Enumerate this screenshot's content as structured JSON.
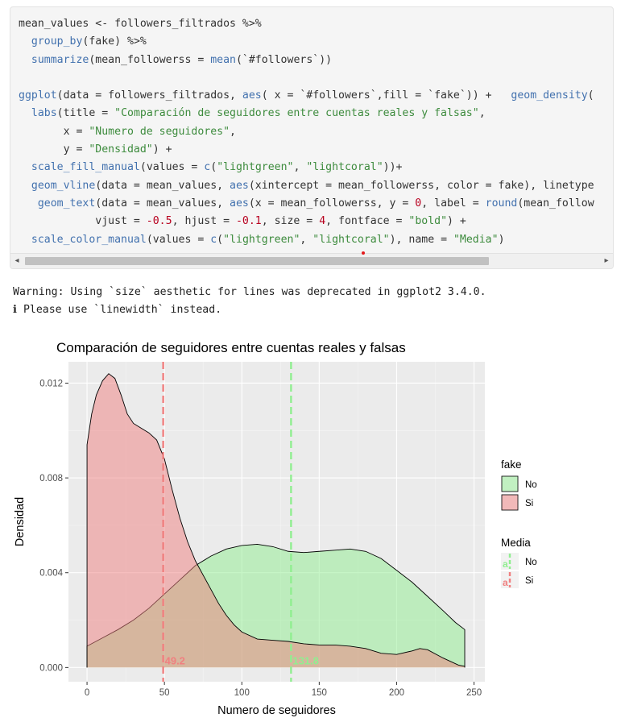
{
  "code": {
    "lines": [
      [
        {
          "t": "mean_values <- followers_filtrados %>%",
          "c": "#333333"
        }
      ],
      [
        {
          "t": "  ",
          "c": "#333333"
        },
        {
          "t": "group_by",
          "c": "#4271ae"
        },
        {
          "t": "(fake) %>%",
          "c": "#333333"
        }
      ],
      [
        {
          "t": "  ",
          "c": "#333333"
        },
        {
          "t": "summarize",
          "c": "#4271ae"
        },
        {
          "t": "(mean_followerss = ",
          "c": "#333333"
        },
        {
          "t": "mean",
          "c": "#4271ae"
        },
        {
          "t": "(`#followers`))",
          "c": "#333333"
        }
      ],
      [
        {
          "t": "",
          "c": "#333333"
        }
      ],
      [
        {
          "t": "ggplot",
          "c": "#4271ae"
        },
        {
          "t": "(data = followers_filtrados, ",
          "c": "#333333"
        },
        {
          "t": "aes",
          "c": "#4271ae"
        },
        {
          "t": "( x = `#followers`,fill = `fake`)) +   ",
          "c": "#333333"
        },
        {
          "t": "geom_density",
          "c": "#4271ae"
        },
        {
          "t": "(",
          "c": "#333333"
        }
      ],
      [
        {
          "t": "  ",
          "c": "#333333"
        },
        {
          "t": "labs",
          "c": "#4271ae"
        },
        {
          "t": "(title = ",
          "c": "#333333"
        },
        {
          "t": "\"Comparación de seguidores entre cuentas reales y falsas\"",
          "c": "#3d8b3d"
        },
        {
          "t": ",",
          "c": "#333333"
        }
      ],
      [
        {
          "t": "       x = ",
          "c": "#333333"
        },
        {
          "t": "\"Numero de seguidores\"",
          "c": "#3d8b3d"
        },
        {
          "t": ",",
          "c": "#333333"
        }
      ],
      [
        {
          "t": "       y = ",
          "c": "#333333"
        },
        {
          "t": "\"Densidad\"",
          "c": "#3d8b3d"
        },
        {
          "t": ") +",
          "c": "#333333"
        }
      ],
      [
        {
          "t": "  ",
          "c": "#333333"
        },
        {
          "t": "scale_fill_manual",
          "c": "#4271ae"
        },
        {
          "t": "(values = ",
          "c": "#333333"
        },
        {
          "t": "c",
          "c": "#4271ae"
        },
        {
          "t": "(",
          "c": "#333333"
        },
        {
          "t": "\"lightgreen\"",
          "c": "#3d8b3d"
        },
        {
          "t": ", ",
          "c": "#333333"
        },
        {
          "t": "\"lightcoral\"",
          "c": "#3d8b3d"
        },
        {
          "t": "))+",
          "c": "#333333"
        }
      ],
      [
        {
          "t": "  ",
          "c": "#333333"
        },
        {
          "t": "geom_vline",
          "c": "#4271ae"
        },
        {
          "t": "(data = mean_values, ",
          "c": "#333333"
        },
        {
          "t": "aes",
          "c": "#4271ae"
        },
        {
          "t": "(xintercept = mean_followerss, color = fake), linetype",
          "c": "#333333"
        }
      ],
      [
        {
          "t": "   ",
          "c": "#333333"
        },
        {
          "t": "geom_text",
          "c": "#4271ae"
        },
        {
          "t": "(data = mean_values, ",
          "c": "#333333"
        },
        {
          "t": "aes",
          "c": "#4271ae"
        },
        {
          "t": "(x = mean_followerss, y = ",
          "c": "#333333"
        },
        {
          "t": "0",
          "c": "#b8001f"
        },
        {
          "t": ", label = ",
          "c": "#333333"
        },
        {
          "t": "round",
          "c": "#4271ae"
        },
        {
          "t": "(mean_follow",
          "c": "#333333"
        }
      ],
      [
        {
          "t": "            vjust = ",
          "c": "#333333"
        },
        {
          "t": "-0.5",
          "c": "#b8001f"
        },
        {
          "t": ", hjust = ",
          "c": "#333333"
        },
        {
          "t": "-0.1",
          "c": "#b8001f"
        },
        {
          "t": ", size = ",
          "c": "#333333"
        },
        {
          "t": "4",
          "c": "#b8001f"
        },
        {
          "t": ", fontface = ",
          "c": "#333333"
        },
        {
          "t": "\"bold\"",
          "c": "#3d8b3d"
        },
        {
          "t": ") +",
          "c": "#333333"
        }
      ],
      [
        {
          "t": "  ",
          "c": "#333333"
        },
        {
          "t": "scale_color_manual",
          "c": "#4271ae"
        },
        {
          "t": "(values = ",
          "c": "#333333"
        },
        {
          "t": "c",
          "c": "#4271ae"
        },
        {
          "t": "(",
          "c": "#333333"
        },
        {
          "t": "\"lightgreen\"",
          "c": "#3d8b3d"
        },
        {
          "t": ", ",
          "c": "#333333"
        },
        {
          "t": "\"lightcoral\"",
          "c": "#3d8b3d"
        },
        {
          "t": "), name = ",
          "c": "#333333"
        },
        {
          "t": "\"Media\"",
          "c": "#3d8b3d"
        },
        {
          "t": ")",
          "c": "#333333"
        }
      ]
    ],
    "scroll_left_arrow": "◂",
    "scroll_right_arrow": "▸"
  },
  "warning": {
    "line1": "Warning: Using `size` aesthetic for lines was deprecated in ggplot2 3.4.0.",
    "line2": "ℹ Please use `linewidth` instead."
  },
  "colors": {
    "no_fill": "#90ee90",
    "si_fill": "#f08080",
    "panel_bg": "#ebebeb",
    "grid_major": "#ffffff"
  },
  "chart_data": {
    "type": "area",
    "title": "Comparación de seguidores entre cuentas reales y falsas",
    "xlabel": "Numero de seguidores",
    "ylabel": "Densidad",
    "xlim": [
      -12,
      257
    ],
    "ylim": [
      -0.0006,
      0.0129
    ],
    "x_ticks": [
      0,
      50,
      100,
      150,
      200,
      250
    ],
    "y_ticks": [
      0.0,
      0.004,
      0.008,
      0.012
    ],
    "y_tick_labels": [
      "0.000",
      "0.004",
      "0.008",
      "0.012"
    ],
    "grid": true,
    "series": [
      {
        "name": "No",
        "fill": "#90ee90",
        "points": [
          [
            0,
            0.0009
          ],
          [
            10,
            0.00125
          ],
          [
            20,
            0.0016
          ],
          [
            30,
            0.002
          ],
          [
            40,
            0.0025
          ],
          [
            50,
            0.0031
          ],
          [
            60,
            0.0037
          ],
          [
            70,
            0.0043
          ],
          [
            80,
            0.0047
          ],
          [
            90,
            0.005
          ],
          [
            100,
            0.00515
          ],
          [
            110,
            0.0052
          ],
          [
            120,
            0.0051
          ],
          [
            130,
            0.0049
          ],
          [
            140,
            0.00485
          ],
          [
            150,
            0.0049
          ],
          [
            160,
            0.00495
          ],
          [
            170,
            0.005
          ],
          [
            180,
            0.0049
          ],
          [
            190,
            0.0046
          ],
          [
            200,
            0.0041
          ],
          [
            210,
            0.0036
          ],
          [
            220,
            0.003
          ],
          [
            230,
            0.0024
          ],
          [
            238,
            0.0019
          ],
          [
            244,
            0.0016
          ]
        ]
      },
      {
        "name": "Si",
        "fill": "#f08080",
        "points": [
          [
            0,
            0.0094
          ],
          [
            3,
            0.0107
          ],
          [
            6,
            0.0115
          ],
          [
            10,
            0.0121
          ],
          [
            14,
            0.0124
          ],
          [
            18,
            0.0122
          ],
          [
            22,
            0.0115
          ],
          [
            26,
            0.0107
          ],
          [
            30,
            0.0103
          ],
          [
            35,
            0.0101
          ],
          [
            40,
            0.0099
          ],
          [
            45,
            0.0096
          ],
          [
            50,
            0.0088
          ],
          [
            55,
            0.0075
          ],
          [
            60,
            0.0063
          ],
          [
            65,
            0.0053
          ],
          [
            70,
            0.0045
          ],
          [
            75,
            0.0039
          ],
          [
            80,
            0.0033
          ],
          [
            85,
            0.0027
          ],
          [
            90,
            0.0022
          ],
          [
            95,
            0.0018
          ],
          [
            100,
            0.0015
          ],
          [
            110,
            0.0012
          ],
          [
            120,
            0.00115
          ],
          [
            130,
            0.0011
          ],
          [
            140,
            0.001
          ],
          [
            150,
            0.00095
          ],
          [
            160,
            0.00095
          ],
          [
            170,
            0.0009
          ],
          [
            180,
            0.0008
          ],
          [
            190,
            0.0006
          ],
          [
            200,
            0.00055
          ],
          [
            210,
            0.0007
          ],
          [
            215,
            0.0008
          ],
          [
            220,
            0.00075
          ],
          [
            230,
            0.0004
          ],
          [
            240,
            0.0001
          ],
          [
            244,
            5e-05
          ]
        ]
      }
    ],
    "vlines": [
      {
        "group": "Si",
        "x": 49.2,
        "label": "49.2",
        "color": "#f08080"
      },
      {
        "group": "No",
        "x": 131.8,
        "label": "131.8",
        "color": "#90ee90"
      }
    ],
    "legend_placement": "right",
    "legend_fill": {
      "title": "fake",
      "items": [
        {
          "label": "No",
          "color": "#90ee90"
        },
        {
          "label": "Si",
          "color": "#f08080"
        }
      ]
    },
    "legend_color": {
      "title": "Media",
      "items": [
        {
          "label": "No",
          "color": "#90ee90"
        },
        {
          "label": "Si",
          "color": "#f08080"
        }
      ],
      "key_glyph": "a"
    }
  }
}
